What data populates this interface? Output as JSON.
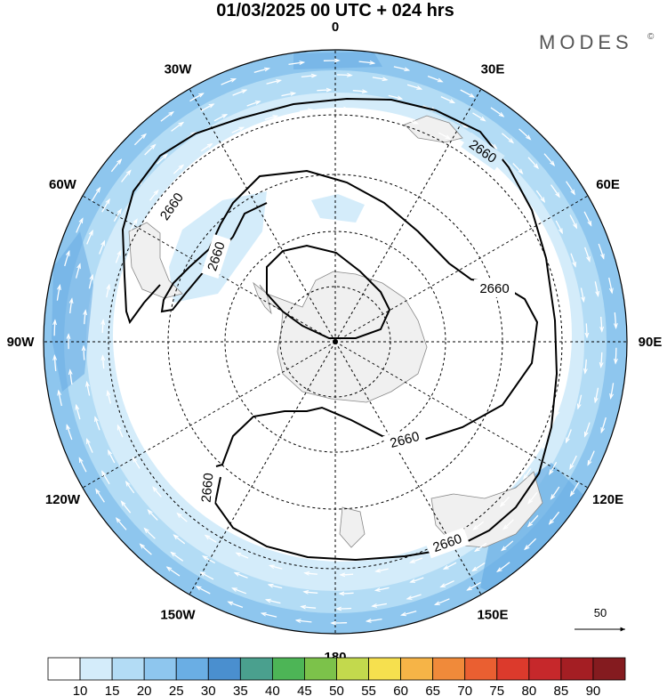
{
  "title": "01/03/2025  00 UTC  + 024 hrs",
  "brand": {
    "name": "MODES",
    "mark": "©"
  },
  "map": {
    "projection": "south-polar-stereographic",
    "meridian_labels": [
      {
        "text": "0",
        "lon": 0
      },
      {
        "text": "30E",
        "lon": 30
      },
      {
        "text": "60E",
        "lon": 60
      },
      {
        "text": "90E",
        "lon": 90
      },
      {
        "text": "120E",
        "lon": 120
      },
      {
        "text": "150E",
        "lon": 150
      },
      {
        "text": "180",
        "lon": 180
      },
      {
        "text": "150W",
        "lon": -150
      },
      {
        "text": "120W",
        "lon": -120
      },
      {
        "text": "90W",
        "lon": -90
      },
      {
        "text": "60W",
        "lon": -60
      },
      {
        "text": "30W",
        "lon": -30
      }
    ],
    "contour_value": "2660",
    "contour_labels": [
      "2660",
      "2660",
      "2660",
      "2660",
      "2660",
      "2660",
      "2660"
    ],
    "vector_reference": {
      "value": "50"
    },
    "colors": {
      "land": "#f0f0f0",
      "coast": "#888888",
      "contour": "#000000",
      "grid": "#000000"
    }
  },
  "colorbar": {
    "levels": [
      "10",
      "15",
      "20",
      "25",
      "30",
      "35",
      "40",
      "45",
      "50",
      "55",
      "60",
      "65",
      "70",
      "75",
      "80",
      "85",
      "90"
    ],
    "colors": [
      "#ffffff",
      "#d4ecfa",
      "#b3dcf5",
      "#8ec6ee",
      "#6aaee4",
      "#4a8fcf",
      "#4aa08e",
      "#4db556",
      "#7cc24a",
      "#c3d94d",
      "#f6e04e",
      "#f6b447",
      "#f08a3a",
      "#ea5f31",
      "#dc3a2c",
      "#c6282b",
      "#a41e23",
      "#841b1f"
    ]
  }
}
